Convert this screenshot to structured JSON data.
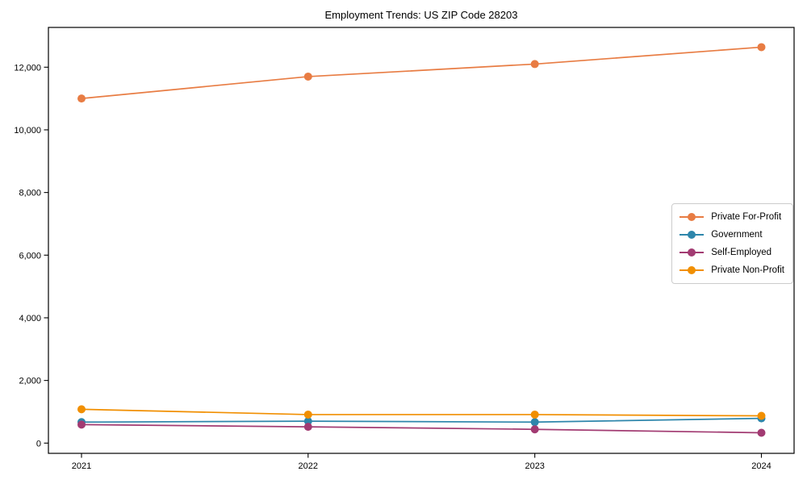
{
  "chart_data": {
    "type": "line",
    "title": "Employment Trends: US ZIP Code 28203",
    "x": [
      2021,
      2022,
      2023,
      2024
    ],
    "x_tick_labels": [
      "2021",
      "2022",
      "2023",
      "2024"
    ],
    "series": [
      {
        "name": "Private For-Profit",
        "color": "#E87C43",
        "values": [
          11000,
          11700,
          12100,
          12640
        ]
      },
      {
        "name": "Government",
        "color": "#2E86AB",
        "values": [
          670,
          700,
          670,
          790
        ]
      },
      {
        "name": "Self-Employed",
        "color": "#A23B72",
        "values": [
          590,
          520,
          440,
          330
        ]
      },
      {
        "name": "Private Non-Profit",
        "color": "#F18F01",
        "values": [
          1080,
          910,
          910,
          870
        ]
      }
    ],
    "ylim": [
      0,
      12000
    ],
    "ytick_values": [
      0,
      2000,
      4000,
      6000,
      8000,
      10000,
      12000
    ],
    "ytick_labels": [
      "0",
      "2,000",
      "4,000",
      "6,000",
      "8,000",
      "10,000",
      "12,000"
    ],
    "xlabel": "",
    "ylabel": "",
    "grid": false,
    "legend_position": "center-right",
    "marker": "circle",
    "axis_color": "#000000",
    "background_color": "#ffffff"
  }
}
